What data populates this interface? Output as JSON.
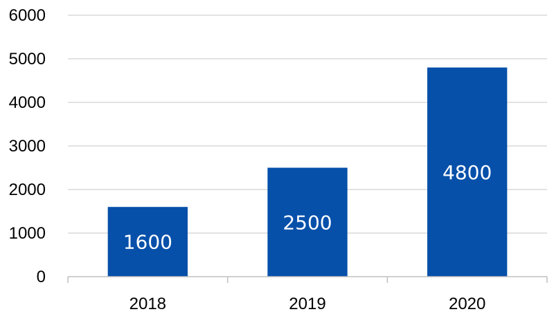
{
  "chart_data": {
    "type": "bar",
    "categories": [
      "2018",
      "2019",
      "2020"
    ],
    "values": [
      1600,
      2500,
      4800
    ],
    "data_labels": [
      "1600",
      "2500",
      "4800"
    ],
    "title": "",
    "xlabel": "",
    "ylabel": "",
    "ylim": [
      0,
      6000
    ],
    "yticks": [
      0,
      1000,
      2000,
      3000,
      4000,
      5000,
      6000
    ],
    "ytick_labels": [
      "0",
      "1000",
      "2000",
      "3000",
      "4000",
      "5000",
      "6000"
    ],
    "grid": true,
    "legend": "none",
    "colors": {
      "bar": "#0650AA",
      "grid": "#D9D9D9",
      "axis": "#BFBFBF",
      "text": "#000000",
      "data_label": "#FFFFFF"
    }
  }
}
